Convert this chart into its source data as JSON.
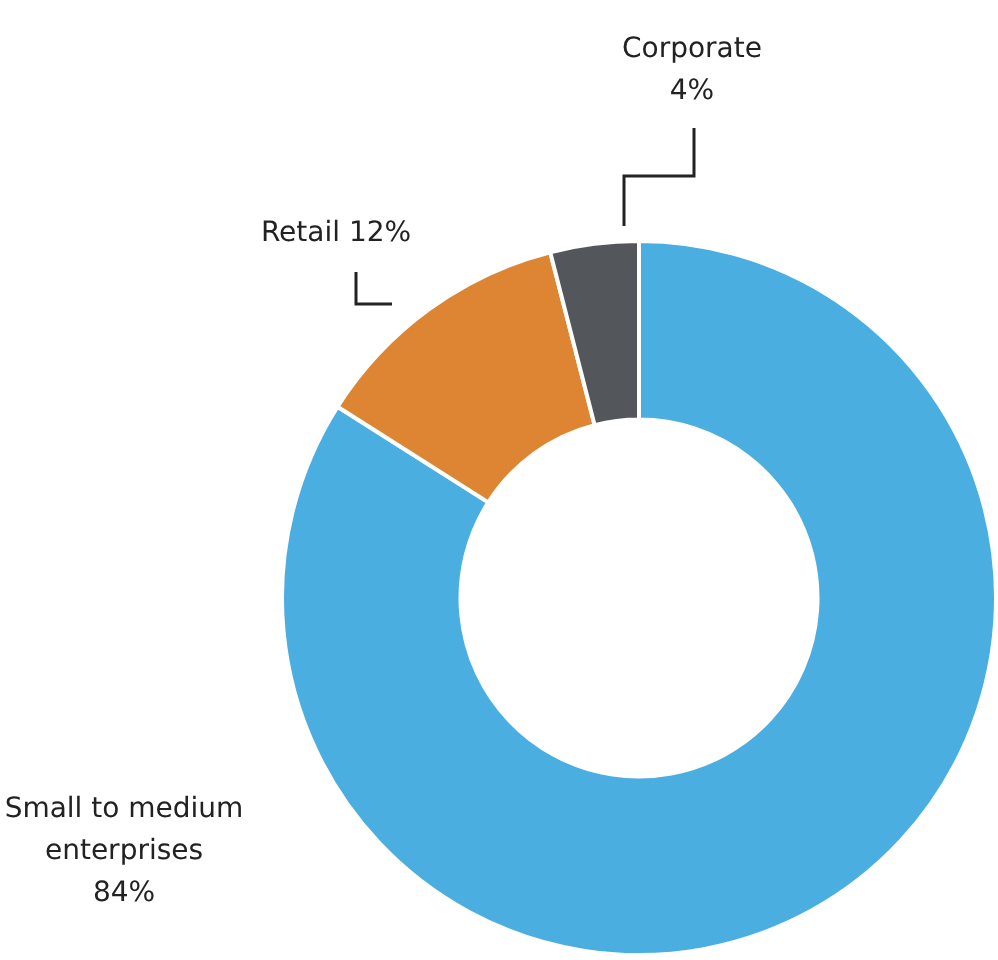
{
  "chart_data": {
    "type": "donut",
    "categories": [
      "Small to medium enterprises",
      "Retail",
      "Corporate"
    ],
    "values": [
      84,
      12,
      4
    ],
    "value_labels": [
      "84%",
      "12%",
      "4%"
    ],
    "colors": [
      "#4baee1",
      "#dd8533",
      "#53565a"
    ],
    "legend": false
  }
}
